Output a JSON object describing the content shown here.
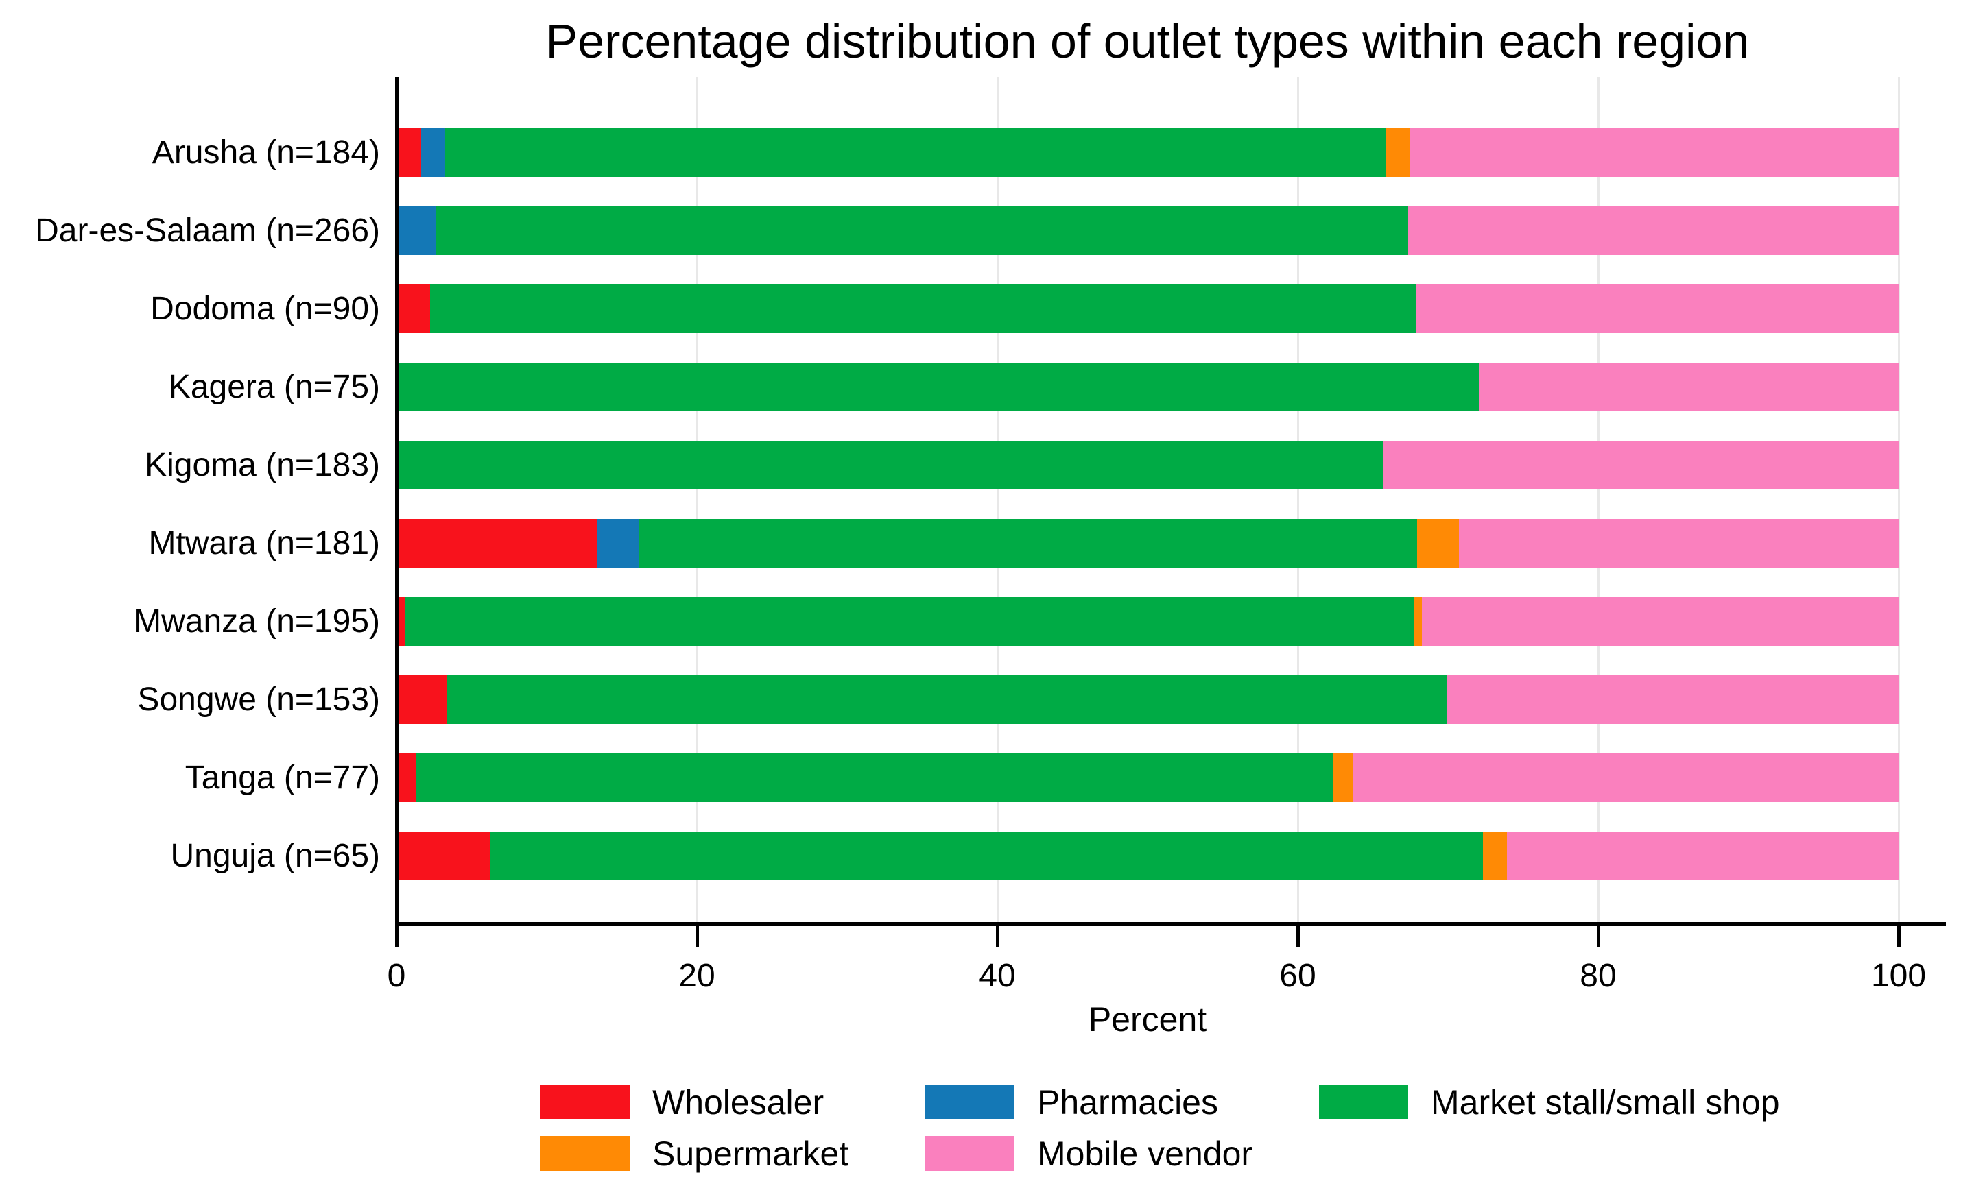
{
  "title": "Percentage distribution of outlet types within each region",
  "x_axis": {
    "label": "Percent",
    "ticks": [
      0,
      20,
      40,
      60,
      80,
      100
    ],
    "min": 0,
    "max": 100
  },
  "colors": {
    "Wholesaler": "#F8121C",
    "Pharmacies": "#1478B6",
    "Market stall/small shop": "#00AB45",
    "Supermarket": "#FF8A05",
    "Mobile vendor": "#FA80BE",
    "grid": "#E8E8E8",
    "axis": "#000000"
  },
  "legend": {
    "items": [
      "Wholesaler",
      "Pharmacies",
      "Market stall/small shop",
      "Supermarket",
      "Mobile vendor"
    ]
  },
  "chart_data": {
    "type": "bar",
    "orientation": "horizontal",
    "stacked": true,
    "title": "Percentage distribution of outlet types within each region",
    "xlabel": "Percent",
    "xlim": [
      0,
      100
    ],
    "grid": true,
    "legend_position": "bottom",
    "categories": [
      "Arusha (n=184)",
      "Dar-es-Salaam (n=266)",
      "Dodoma (n=90)",
      "Kagera (n=75)",
      "Kigoma (n=183)",
      "Mtwara (n=181)",
      "Mwanza (n=195)",
      "Songwe (n=153)",
      "Tanga (n=77)",
      "Unguja (n=65)"
    ],
    "series": [
      {
        "name": "Wholesaler",
        "values": [
          1.6,
          0,
          2.2,
          0,
          0,
          13.3,
          0.5,
          3.3,
          1.3,
          6.2
        ]
      },
      {
        "name": "Pharmacies",
        "values": [
          1.6,
          2.6,
          0,
          0,
          0,
          2.8,
          0,
          0,
          0,
          0
        ]
      },
      {
        "name": "Market stall/small shop",
        "values": [
          62.6,
          64.7,
          65.6,
          72.0,
          65.6,
          51.8,
          67.2,
          66.6,
          61.0,
          66.1
        ]
      },
      {
        "name": "Supermarket",
        "values": [
          1.6,
          0,
          0,
          0,
          0,
          2.8,
          0.5,
          0,
          1.3,
          1.6
        ]
      },
      {
        "name": "Mobile vendor",
        "values": [
          32.6,
          32.7,
          32.2,
          28.0,
          34.4,
          29.3,
          31.8,
          30.1,
          36.4,
          26.1
        ]
      }
    ]
  }
}
